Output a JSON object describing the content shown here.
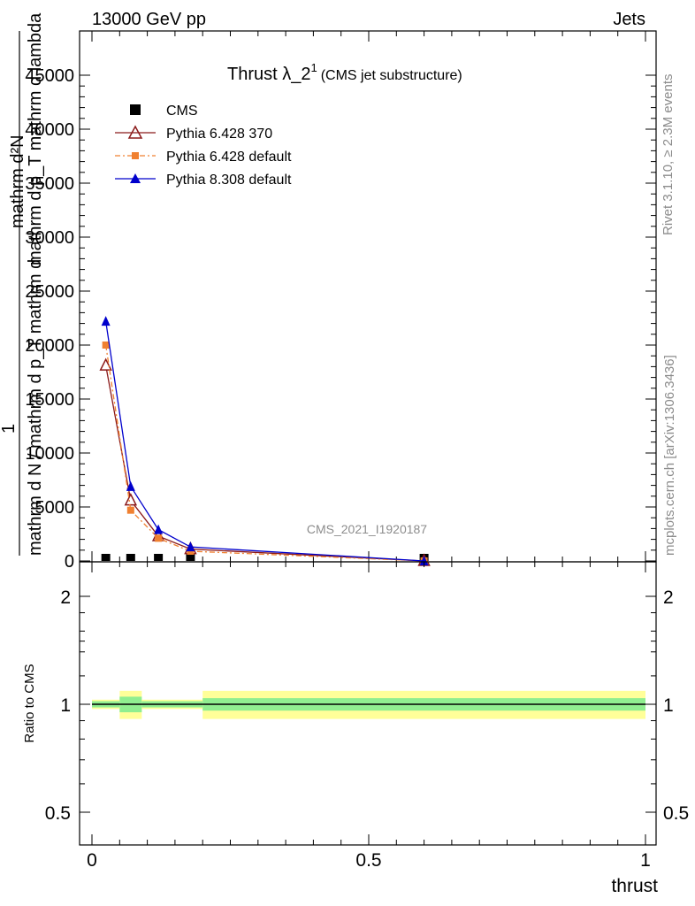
{
  "header": {
    "left": "13000 GeV pp",
    "right": "Jets"
  },
  "side_labels": {
    "rivet": "Rivet 3.1.10, ≥ 2.3M events",
    "mcplots": "mcplots.cern.ch [arXiv:1306.3436]"
  },
  "chart_data": [
    {
      "type": "line",
      "title": "Thrust λ_2",
      "title_sup": "1",
      "subtitle": "(CMS jet substructure)",
      "watermark": "CMS_2021_I1920187",
      "ylabel_numerator": "1",
      "ylabel_num_main": "mathrm d",
      "ylabel_num_sub": "N",
      "ylabel_num_tail": "",
      "ylabel_lines": [
        "mathrm d^2N",
        "mathrm d p_T mathrm d lambda",
        "mathrm d N / mathrm d p_T mathrm d"
      ],
      "ylabel_fraction_top": "mathrm d²N",
      "ylabel_fraction_mid": "mathrm d p_T mathrm d lambda",
      "ylabel_fraction_bottom": "mathrm d N / mathrm d p_T mathrm d",
      "xlim": [
        0,
        1
      ],
      "ylim": [
        0,
        45000
      ],
      "y_ticks": [
        0,
        5000,
        10000,
        15000,
        20000,
        25000,
        30000,
        35000,
        40000,
        45000
      ],
      "y_tick_labels": [
        "0",
        "5000",
        "10000",
        "15000",
        "20000",
        "25000",
        "30000",
        "35000",
        "40000",
        "45000"
      ],
      "legend": {
        "placement": "top-left",
        "entries": [
          "CMS",
          "Pythia 6.428 370",
          "Pythia 6.428 default",
          "Pythia 8.308 default"
        ]
      },
      "x": [
        0.025,
        0.07,
        0.12,
        0.178,
        0.6
      ],
      "series": [
        {
          "name": "CMS",
          "values": [
            0,
            0,
            0,
            0,
            0
          ]
        },
        {
          "name": "Pythia 6.428 370",
          "values": [
            18100,
            5600,
            2300,
            1100,
            0
          ]
        },
        {
          "name": "Pythia 6.428 default",
          "values": [
            20000,
            4700,
            2100,
            900,
            0
          ]
        },
        {
          "name": "Pythia 8.308 default",
          "values": [
            22200,
            6900,
            2900,
            1300,
            0
          ]
        }
      ],
      "colors": {
        "CMS": "#000000",
        "Pythia 6.428 370": "#8b1a1a",
        "Pythia 6.428 default": "#f08030",
        "Pythia 8.308 default": "#0000cc"
      }
    },
    {
      "type": "area",
      "ylabel": "Ratio to CMS",
      "xlabel": "thrust",
      "xlim": [
        0,
        1
      ],
      "ylim": [
        0.35,
        2.3
      ],
      "y_ticks": [
        0.5,
        1,
        2
      ],
      "y_tick_labels": [
        "0.5",
        "1",
        "2"
      ],
      "x_ticks": [
        0,
        0.5,
        1
      ],
      "x_tick_labels": [
        "0",
        "0.5",
        "1"
      ],
      "bins": [
        {
          "lo": 0.0,
          "hi": 0.05,
          "stat": [
            0.98,
            1.02
          ],
          "tot": [
            0.97,
            1.03
          ]
        },
        {
          "lo": 0.05,
          "hi": 0.09,
          "stat": [
            0.95,
            1.05
          ],
          "tot": [
            0.91,
            1.09
          ]
        },
        {
          "lo": 0.09,
          "hi": 0.2,
          "stat": [
            0.98,
            1.02
          ],
          "tot": [
            0.97,
            1.03
          ]
        },
        {
          "lo": 0.2,
          "hi": 1.0,
          "stat": [
            0.96,
            1.04
          ],
          "tot": [
            0.91,
            1.09
          ]
        }
      ],
      "band_colors": {
        "stat": "#90ee90",
        "tot": "#ffff99"
      }
    }
  ]
}
